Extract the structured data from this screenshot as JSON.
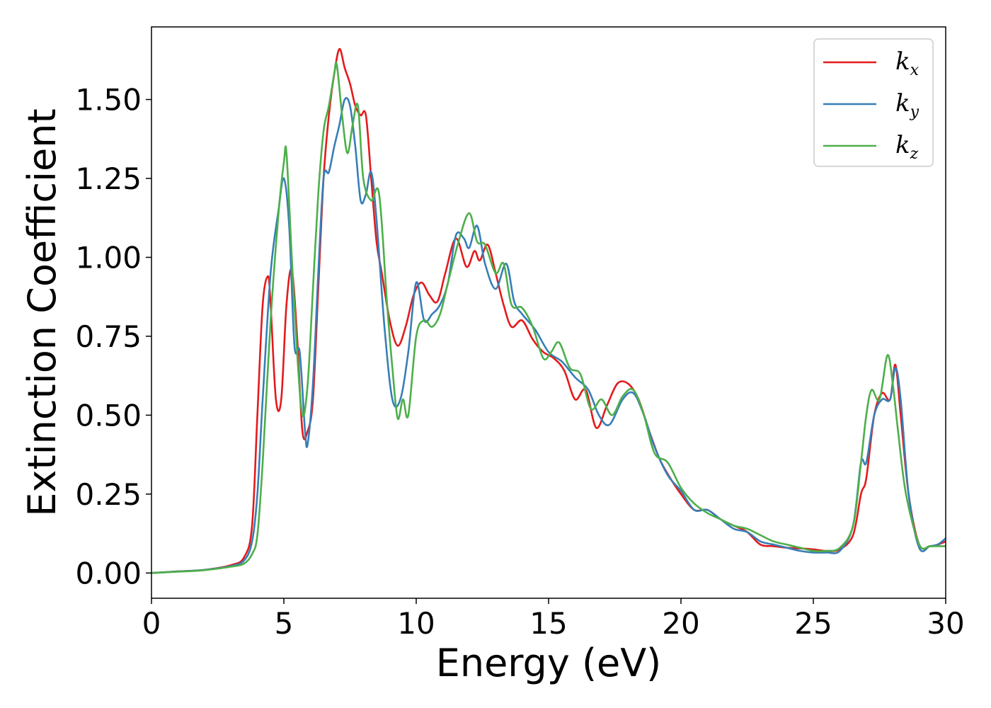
{
  "chart_data": {
    "type": "line",
    "title": "",
    "xlabel": "Energy (eV)",
    "ylabel": "Extinction Coefficient",
    "xlim": [
      0,
      30
    ],
    "ylim": [
      -0.08,
      1.73
    ],
    "xticks": [
      0,
      5,
      10,
      15,
      20,
      25,
      30
    ],
    "yticks": [
      0.0,
      0.25,
      0.5,
      0.75,
      1.0,
      1.25,
      1.5
    ],
    "ytick_labels": [
      "0.00",
      "0.25",
      "0.50",
      "0.75",
      "1.00",
      "1.25",
      "1.50"
    ],
    "grid": false,
    "legend_position": "top-right",
    "series": [
      {
        "name": "k",
        "subscript": "x",
        "color": "#e41a1c",
        "x": [
          0,
          1,
          2,
          3,
          3.5,
          3.8,
          4.0,
          4.2,
          4.4,
          4.5,
          4.7,
          4.9,
          5.1,
          5.3,
          5.5,
          5.7,
          5.9,
          6.1,
          6.3,
          6.5,
          6.7,
          6.9,
          7.1,
          7.3,
          7.5,
          7.7,
          7.9,
          8.1,
          8.3,
          8.5,
          8.7,
          9.0,
          9.3,
          9.6,
          9.9,
          10.2,
          10.5,
          10.8,
          11.1,
          11.5,
          11.9,
          12.2,
          12.4,
          12.7,
          13.0,
          13.3,
          13.6,
          14.0,
          14.4,
          14.8,
          15.2,
          15.6,
          16.0,
          16.4,
          16.8,
          17.2,
          17.6,
          18.0,
          18.4,
          18.8,
          19.2,
          19.6,
          20.0,
          20.5,
          21.0,
          21.5,
          22.0,
          22.5,
          23.0,
          23.5,
          24.0,
          24.5,
          25.0,
          25.5,
          26.0,
          26.5,
          26.8,
          27.0,
          27.3,
          27.6,
          27.9,
          28.1,
          28.3,
          28.6,
          29.0,
          29.4,
          29.7,
          30.0
        ],
        "values": [
          0.0,
          0.005,
          0.01,
          0.025,
          0.05,
          0.15,
          0.5,
          0.85,
          0.94,
          0.85,
          0.55,
          0.55,
          0.85,
          0.96,
          0.75,
          0.45,
          0.45,
          0.55,
          0.9,
          1.25,
          1.45,
          1.58,
          1.66,
          1.6,
          1.55,
          1.48,
          1.45,
          1.45,
          1.25,
          1.05,
          0.95,
          0.8,
          0.72,
          0.78,
          0.88,
          0.92,
          0.88,
          0.86,
          0.95,
          1.06,
          0.97,
          1.02,
          0.99,
          1.04,
          0.95,
          0.85,
          0.78,
          0.8,
          0.74,
          0.7,
          0.68,
          0.64,
          0.55,
          0.58,
          0.46,
          0.53,
          0.6,
          0.6,
          0.55,
          0.45,
          0.36,
          0.3,
          0.25,
          0.2,
          0.2,
          0.17,
          0.15,
          0.13,
          0.09,
          0.085,
          0.08,
          0.078,
          0.075,
          0.07,
          0.075,
          0.12,
          0.25,
          0.3,
          0.5,
          0.57,
          0.55,
          0.66,
          0.5,
          0.25,
          0.09,
          0.085,
          0.09,
          0.1
        ]
      },
      {
        "name": "k",
        "subscript": "y",
        "color": "#377eb8",
        "x": [
          0,
          1,
          2,
          3,
          3.5,
          3.8,
          4.0,
          4.2,
          4.5,
          4.8,
          5.0,
          5.2,
          5.4,
          5.6,
          5.8,
          5.9,
          6.1,
          6.3,
          6.5,
          6.7,
          6.9,
          7.1,
          7.3,
          7.5,
          7.7,
          7.9,
          8.1,
          8.3,
          8.5,
          8.8,
          9.1,
          9.4,
          9.7,
          10.0,
          10.3,
          10.6,
          10.9,
          11.2,
          11.5,
          11.8,
          12.0,
          12.3,
          12.6,
          13.0,
          13.4,
          13.7,
          14.0,
          14.5,
          15.0,
          15.5,
          16.0,
          16.5,
          16.9,
          17.3,
          17.8,
          18.2,
          18.6,
          19.0,
          19.5,
          20.0,
          20.5,
          21.0,
          21.5,
          22.0,
          22.5,
          23.0,
          23.5,
          24.0,
          24.5,
          25.0,
          25.5,
          26.0,
          26.5,
          26.8,
          27.0,
          27.3,
          27.6,
          27.9,
          28.1,
          28.3,
          28.6,
          29.0,
          29.4,
          29.7,
          30.0
        ],
        "values": [
          0.0,
          0.005,
          0.01,
          0.022,
          0.04,
          0.1,
          0.25,
          0.55,
          0.95,
          1.15,
          1.25,
          1.1,
          0.72,
          0.7,
          0.45,
          0.41,
          0.6,
          0.95,
          1.25,
          1.27,
          1.35,
          1.42,
          1.5,
          1.48,
          1.35,
          1.18,
          1.2,
          1.27,
          1.12,
          0.78,
          0.55,
          0.55,
          0.7,
          0.92,
          0.8,
          0.82,
          0.85,
          0.92,
          1.07,
          1.06,
          1.03,
          1.1,
          0.98,
          0.9,
          0.98,
          0.86,
          0.82,
          0.77,
          0.7,
          0.67,
          0.62,
          0.58,
          0.5,
          0.47,
          0.55,
          0.57,
          0.5,
          0.4,
          0.31,
          0.26,
          0.2,
          0.2,
          0.17,
          0.14,
          0.13,
          0.1,
          0.09,
          0.08,
          0.07,
          0.065,
          0.065,
          0.07,
          0.15,
          0.35,
          0.35,
          0.5,
          0.55,
          0.55,
          0.65,
          0.55,
          0.25,
          0.08,
          0.085,
          0.09,
          0.11
        ]
      },
      {
        "name": "k",
        "subscript": "z",
        "color": "#4daf4a",
        "x": [
          0,
          1,
          2,
          3,
          3.5,
          3.8,
          4.0,
          4.2,
          4.5,
          4.8,
          5.0,
          5.1,
          5.3,
          5.5,
          5.7,
          5.9,
          6.1,
          6.3,
          6.5,
          6.7,
          6.9,
          7.0,
          7.2,
          7.4,
          7.6,
          7.8,
          8.0,
          8.3,
          8.6,
          8.9,
          9.1,
          9.3,
          9.5,
          9.7,
          10.0,
          10.3,
          10.6,
          10.9,
          11.2,
          11.6,
          12.0,
          12.3,
          12.6,
          13.0,
          13.3,
          13.6,
          14.0,
          14.4,
          14.8,
          15.1,
          15.4,
          15.8,
          16.2,
          16.6,
          17.0,
          17.4,
          17.8,
          18.2,
          18.6,
          19.0,
          19.5,
          20.0,
          20.5,
          21.0,
          21.5,
          22.0,
          22.5,
          23.0,
          23.5,
          24.0,
          24.5,
          25.0,
          25.5,
          26.0,
          26.5,
          26.8,
          27.0,
          27.2,
          27.5,
          27.8,
          28.0,
          28.2,
          28.5,
          29.0,
          29.4,
          29.7,
          30.0
        ],
        "values": [
          0.0,
          0.004,
          0.009,
          0.02,
          0.03,
          0.06,
          0.12,
          0.35,
          0.8,
          1.14,
          1.3,
          1.33,
          1.0,
          0.7,
          0.5,
          0.6,
          0.9,
          1.2,
          1.4,
          1.48,
          1.58,
          1.61,
          1.45,
          1.33,
          1.42,
          1.48,
          1.25,
          1.18,
          1.2,
          0.85,
          0.65,
          0.49,
          0.55,
          0.5,
          0.75,
          0.8,
          0.78,
          0.82,
          0.92,
          1.05,
          1.14,
          1.05,
          1.04,
          0.95,
          0.98,
          0.85,
          0.84,
          0.78,
          0.68,
          0.7,
          0.73,
          0.65,
          0.63,
          0.52,
          0.55,
          0.5,
          0.56,
          0.58,
          0.5,
          0.38,
          0.35,
          0.27,
          0.22,
          0.19,
          0.17,
          0.15,
          0.14,
          0.12,
          0.1,
          0.09,
          0.08,
          0.07,
          0.07,
          0.08,
          0.15,
          0.35,
          0.5,
          0.58,
          0.55,
          0.69,
          0.6,
          0.45,
          0.25,
          0.09,
          0.085,
          0.085,
          0.085
        ]
      }
    ]
  }
}
